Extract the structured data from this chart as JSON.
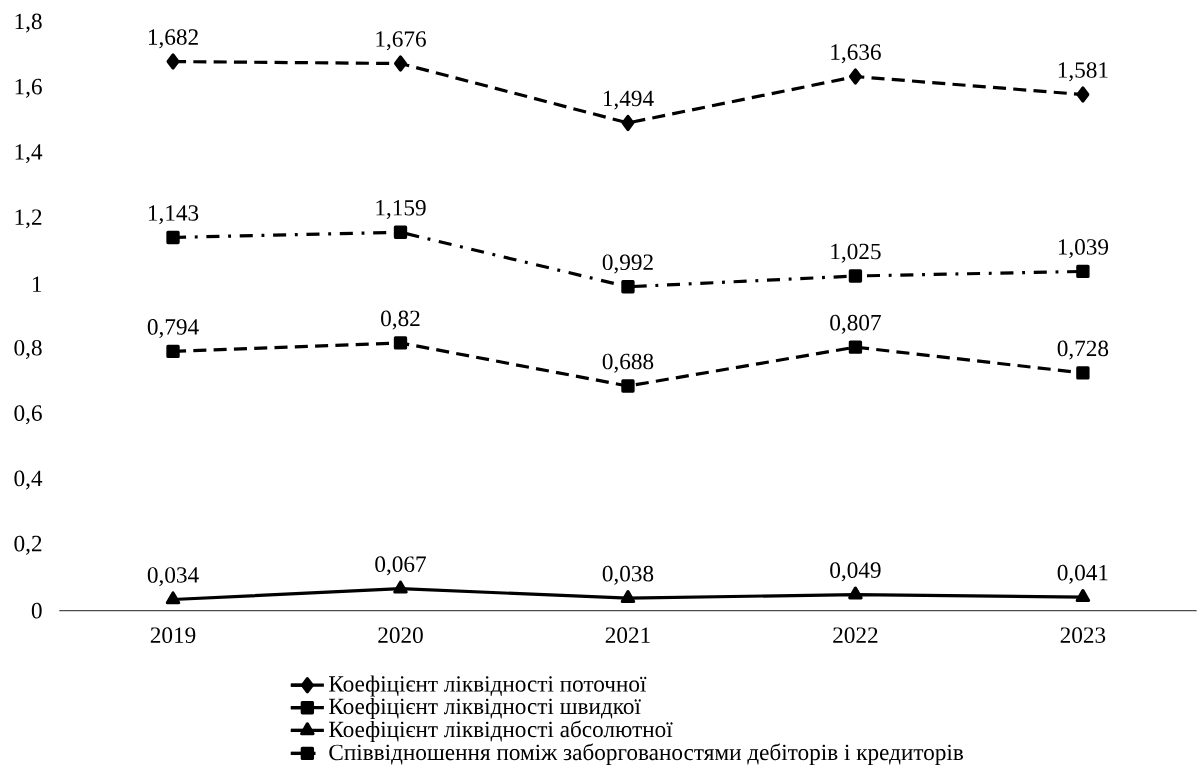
{
  "chart_data": {
    "type": "line",
    "categories": [
      "2019",
      "2020",
      "2021",
      "2022",
      "2023"
    ],
    "series": [
      {
        "name": "Коефіцієнт ліквідності поточної",
        "color": "#000000",
        "marker": "diamond",
        "line_style": "dashed",
        "values": [
          1.682,
          1.676,
          1.494,
          1.636,
          1.581
        ],
        "value_labels": [
          "1,682",
          "1,676",
          "1,494",
          "1,636",
          "1,581"
        ]
      },
      {
        "name": "Коефіцієнт ліквідності швидкої",
        "color": "#000000",
        "marker": "square",
        "line_style": "dashed",
        "values": [
          0.794,
          0.82,
          0.688,
          0.807,
          0.728
        ],
        "value_labels": [
          "0,794",
          "0,82",
          "0,688",
          "0,807",
          "0,728"
        ]
      },
      {
        "name": "Коефіцієнт ліквідності абсолютної",
        "color": "#000000",
        "marker": "triangle",
        "line_style": "solid",
        "values": [
          0.034,
          0.067,
          0.038,
          0.049,
          0.041
        ],
        "value_labels": [
          "0,034",
          "0,067",
          "0,038",
          "0,049",
          "0,041"
        ]
      },
      {
        "name": "Співвідношення поміж заборгованостями дебіторів і кредиторів",
        "color": "#000000",
        "marker": "square",
        "line_style": "dashdot",
        "values": [
          1.143,
          1.159,
          0.992,
          1.025,
          1.039
        ],
        "value_labels": [
          "1,143",
          "1,159",
          "0,992",
          "1,025",
          "1,039"
        ]
      }
    ],
    "ylim": [
      0,
      1.8
    ],
    "yticks": [
      0,
      {
        "value": 0.2,
        "label": "0,2"
      },
      {
        "value": 0.4,
        "label": "0,4"
      },
      {
        "value": 0.6,
        "label": "0,6"
      },
      {
        "value": 0.8,
        "label": "0,8"
      },
      1,
      {
        "value": 1.2,
        "label": "1,2"
      },
      {
        "value": 1.4,
        "label": "1,4"
      },
      {
        "value": 1.6,
        "label": "1,6"
      },
      {
        "value": 1.8,
        "label": "1,8"
      }
    ],
    "grid": false,
    "legend": "bottom"
  }
}
